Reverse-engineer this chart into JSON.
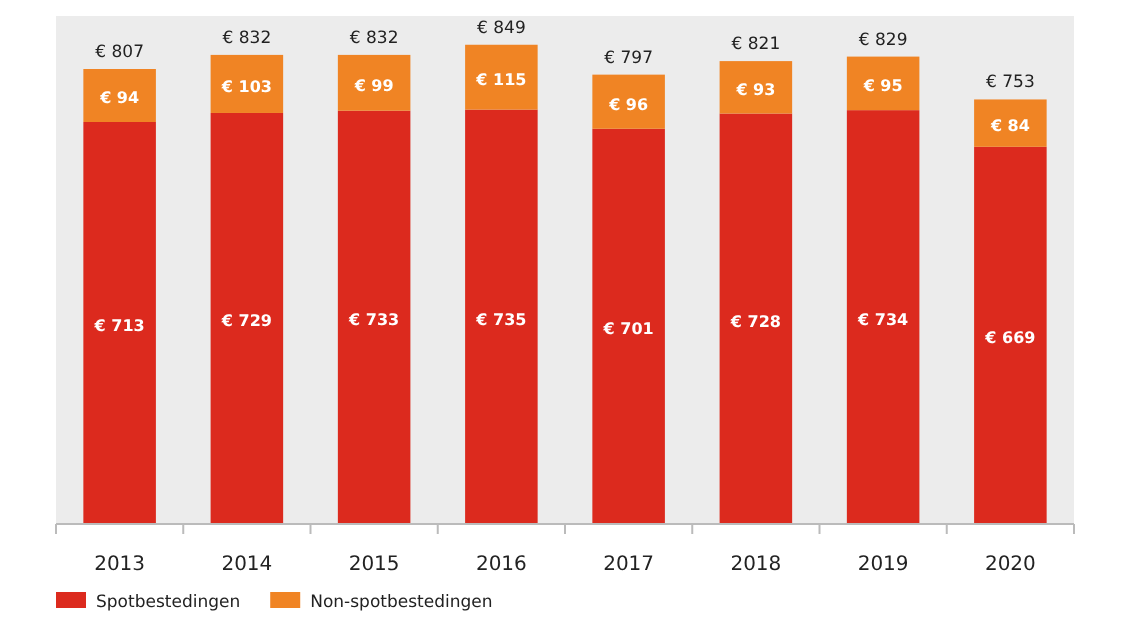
{
  "chart_data": {
    "type": "bar",
    "stacked": true,
    "categories": [
      "2013",
      "2014",
      "2015",
      "2016",
      "2017",
      "2018",
      "2019",
      "2020"
    ],
    "series": [
      {
        "name": "Spotbestedingen",
        "color": "#dc2a1e",
        "values": [
          713,
          729,
          733,
          735,
          701,
          728,
          734,
          669
        ],
        "value_labels": [
          "€ 713",
          "€ 729",
          "€ 733",
          "€ 735",
          "€ 701",
          "€ 728",
          "€ 734",
          "€ 669"
        ]
      },
      {
        "name": "Non-spotbestedingen",
        "color": "#f08424",
        "values": [
          94,
          103,
          99,
          115,
          96,
          93,
          95,
          84
        ],
        "value_labels": [
          "€ 94",
          "€ 103",
          "€ 99",
          "€ 115",
          "€ 96",
          "€ 93",
          "€ 95",
          "€ 84"
        ]
      }
    ],
    "totals": [
      "€ 807",
      "€ 832",
      "€ 832",
      "€ 849",
      "€ 797",
      "€ 821",
      "€ 829",
      "€ 753"
    ],
    "legend": "bottom left"
  }
}
